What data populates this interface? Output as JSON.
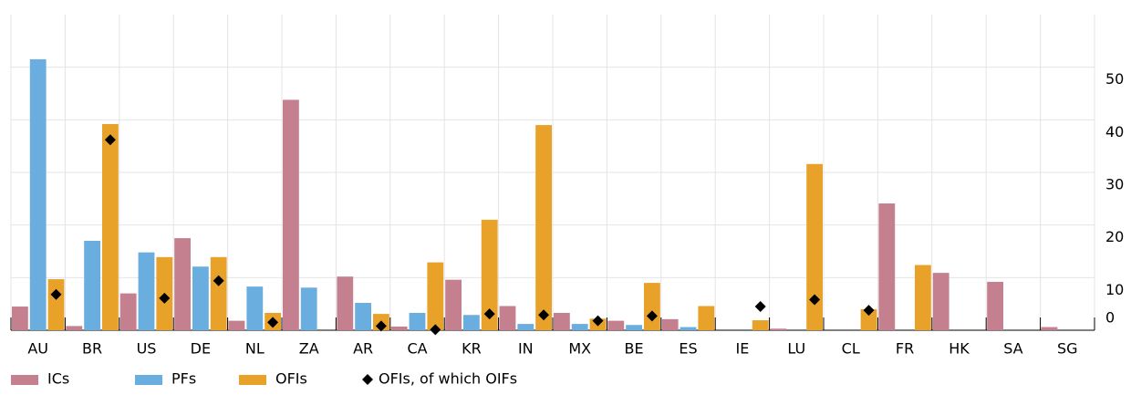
{
  "chart_data": {
    "type": "bar",
    "categories": [
      "AU",
      "BR",
      "US",
      "DE",
      "NL",
      "ZA",
      "AR",
      "CA",
      "KR",
      "IN",
      "MX",
      "BE",
      "ES",
      "IE",
      "LU",
      "CL",
      "FR",
      "HK",
      "SA",
      "SG"
    ],
    "series": [
      {
        "name": "ICs",
        "color": "#c4808f",
        "values": [
          4.5,
          0.8,
          7,
          17.5,
          1.8,
          43.8,
          10.2,
          0.7,
          9.6,
          4.6,
          3.3,
          1.8,
          2.1,
          0,
          0.3,
          0,
          24.1,
          10.9,
          9.2,
          0.6
        ]
      },
      {
        "name": "PFs",
        "color": "#6aaee0",
        "values": [
          51.5,
          17,
          14.8,
          12.1,
          8.3,
          8.1,
          5.2,
          3.3,
          2.9,
          1.2,
          1.2,
          1,
          0.6,
          0,
          0,
          0,
          0,
          0,
          0,
          0
        ]
      },
      {
        "name": "OFIs",
        "color": "#e8a22a",
        "values": [
          9.7,
          39.2,
          13.9,
          13.9,
          3.3,
          0,
          3.1,
          12.9,
          21,
          39,
          2.2,
          9,
          4.6,
          1.9,
          31.6,
          4,
          12.4,
          0,
          0,
          0
        ]
      },
      {
        "name": "OFIs, of which OIFs",
        "color": "#000000",
        "marker": "diamond",
        "values": [
          6.8,
          36.2,
          6.1,
          9.4,
          1.5,
          null,
          0.8,
          0.1,
          3.1,
          2.9,
          1.8,
          2.7,
          null,
          4.5,
          5.8,
          3.8,
          null,
          null,
          null,
          null
        ]
      }
    ],
    "ylim": [
      0,
      60
    ],
    "yticks": [
      0,
      10,
      20,
      30,
      40,
      50
    ],
    "grid": true,
    "y_axis_side": "right",
    "legend": "bottom"
  }
}
